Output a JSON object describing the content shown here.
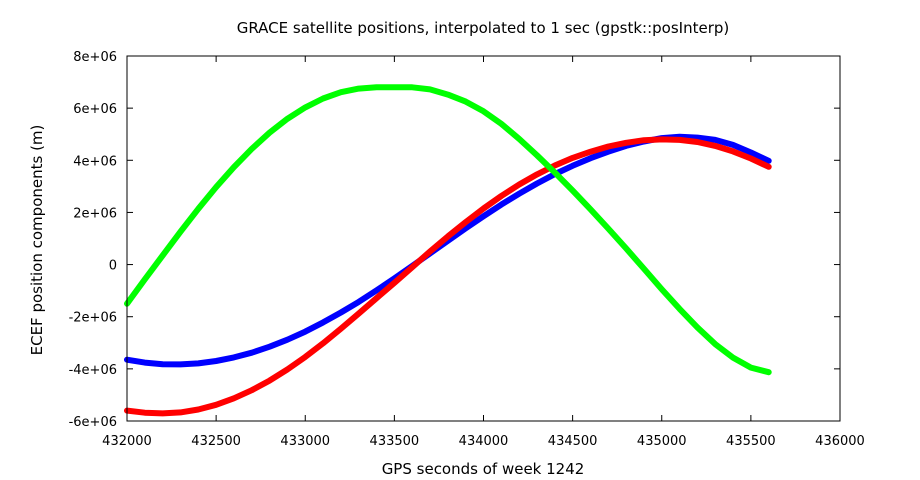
{
  "chart_data": {
    "type": "line",
    "title": "GRACE satellite positions, interpolated to 1 sec (gpstk::posInterp)",
    "xlabel": "GPS seconds of week 1242",
    "ylabel": "ECEF position components (m)",
    "xlim": [
      432000,
      436000
    ],
    "ylim": [
      -6000000,
      8000000
    ],
    "xticks": [
      432000,
      432500,
      433000,
      433500,
      434000,
      434500,
      435000,
      435500,
      436000
    ],
    "xtick_labels": [
      "432000",
      "432500",
      "433000",
      "433500",
      "434000",
      "434500",
      "435000",
      "435500",
      "436000"
    ],
    "yticks": [
      -6000000,
      -4000000,
      -2000000,
      0,
      2000000,
      4000000,
      6000000,
      8000000
    ],
    "ytick_labels": [
      "-6e+06",
      "-4e+06",
      "-2e+06",
      "0",
      "2e+06",
      "4e+06",
      "6e+06",
      "8e+06"
    ],
    "grid": false,
    "legend": "none",
    "series": [
      {
        "color": "#0000ff",
        "x": [
          432000,
          432100,
          432200,
          432300,
          432400,
          432500,
          432600,
          432700,
          432800,
          432900,
          433000,
          433100,
          433200,
          433300,
          433400,
          433500,
          433600,
          433700,
          433800,
          433900,
          434000,
          434100,
          434200,
          434300,
          434400,
          434500,
          434600,
          434700,
          434800,
          434900,
          435000,
          435100,
          435200,
          435300,
          435400,
          435500,
          435600
        ],
        "y": [
          -3650000,
          -3760000,
          -3820000,
          -3830000,
          -3790000,
          -3700000,
          -3560000,
          -3380000,
          -3150000,
          -2880000,
          -2570000,
          -2220000,
          -1840000,
          -1430000,
          -990000,
          -530000,
          -50000,
          430000,
          910000,
          1390000,
          1850000,
          2300000,
          2720000,
          3110000,
          3470000,
          3790000,
          4080000,
          4330000,
          4550000,
          4720000,
          4850000,
          4900000,
          4870000,
          4780000,
          4590000,
          4300000,
          3980000
        ]
      },
      {
        "color": "#ff0000",
        "x": [
          432000,
          432100,
          432200,
          432300,
          432400,
          432500,
          432600,
          432700,
          432800,
          432900,
          433000,
          433100,
          433200,
          433300,
          433400,
          433500,
          433600,
          433700,
          433800,
          433900,
          434000,
          434100,
          434200,
          434300,
          434400,
          434500,
          434600,
          434700,
          434800,
          434900,
          435000,
          435100,
          435200,
          435300,
          435400,
          435500,
          435600
        ],
        "y": [
          -5600000,
          -5680000,
          -5710000,
          -5670000,
          -5560000,
          -5380000,
          -5130000,
          -4820000,
          -4450000,
          -4020000,
          -3540000,
          -3020000,
          -2460000,
          -1880000,
          -1290000,
          -700000,
          -100000,
          500000,
          1080000,
          1630000,
          2150000,
          2630000,
          3070000,
          3460000,
          3800000,
          4090000,
          4330000,
          4530000,
          4670000,
          4770000,
          4800000,
          4780000,
          4700000,
          4550000,
          4340000,
          4070000,
          3750000
        ]
      },
      {
        "color": "#00ff00",
        "x": [
          432000,
          432100,
          432200,
          432300,
          432400,
          432500,
          432600,
          432700,
          432800,
          432900,
          433000,
          433100,
          433200,
          433300,
          433400,
          433500,
          433600,
          433700,
          433800,
          433900,
          434000,
          434100,
          434200,
          434300,
          434400,
          434500,
          434600,
          434700,
          434800,
          434900,
          435000,
          435100,
          435200,
          435300,
          435400,
          435500,
          435600
        ],
        "y": [
          -1500000,
          -570000,
          350000,
          1260000,
          2140000,
          2970000,
          3740000,
          4440000,
          5060000,
          5590000,
          6030000,
          6370000,
          6610000,
          6750000,
          6800000,
          6800000,
          6800000,
          6720000,
          6520000,
          6250000,
          5880000,
          5400000,
          4820000,
          4190000,
          3530000,
          2840000,
          2120000,
          1380000,
          620000,
          -160000,
          -950000,
          -1700000,
          -2410000,
          -3050000,
          -3570000,
          -3950000,
          -4130000
        ]
      }
    ]
  }
}
